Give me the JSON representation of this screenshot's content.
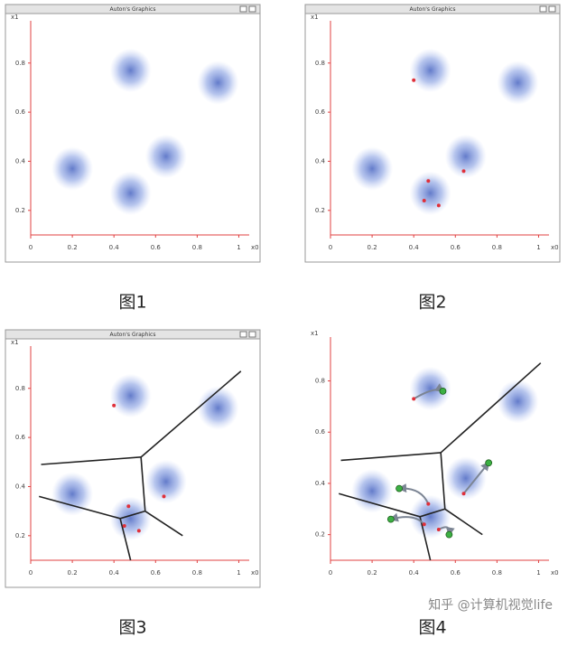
{
  "chart_data": [
    {
      "type": "scatter",
      "title": "Auton's Graphics",
      "caption": "图1",
      "xlabel": "x0",
      "ylabel": "x1",
      "xlim": [
        0,
        1.05
      ],
      "ylim": [
        0.1,
        0.95
      ],
      "xticks": [
        0,
        0.2,
        0.4,
        0.6,
        0.8,
        1
      ],
      "yticks": [
        0.2,
        0.4,
        0.6,
        0.8
      ],
      "clusters": {
        "color": "#4f6fd0",
        "x": [
          0.48,
          0.9,
          0.2,
          0.65,
          0.48
        ],
        "y": [
          0.77,
          0.72,
          0.37,
          0.42,
          0.27
        ]
      }
    },
    {
      "type": "scatter",
      "title": "Auton's Graphics",
      "caption": "图2",
      "xlabel": "x0",
      "ylabel": "x1",
      "xlim": [
        0,
        1.05
      ],
      "ylim": [
        0.1,
        0.95
      ],
      "xticks": [
        0,
        0.2,
        0.4,
        0.6,
        0.8,
        1
      ],
      "yticks": [
        0.2,
        0.4,
        0.6,
        0.8
      ],
      "clusters": {
        "color": "#4f6fd0",
        "x": [
          0.48,
          0.9,
          0.2,
          0.65,
          0.48
        ],
        "y": [
          0.77,
          0.72,
          0.37,
          0.42,
          0.27
        ]
      },
      "centers": {
        "color": "#e0303a",
        "x": [
          0.4,
          0.47,
          0.45,
          0.52,
          0.64
        ],
        "y": [
          0.73,
          0.32,
          0.24,
          0.22,
          0.36
        ]
      }
    },
    {
      "type": "scatter",
      "title": "Auton's Graphics",
      "caption": "图3",
      "xlabel": "x0",
      "ylabel": "x1",
      "xlim": [
        0,
        1.05
      ],
      "ylim": [
        0.1,
        0.95
      ],
      "xticks": [
        0,
        0.2,
        0.4,
        0.6,
        0.8,
        1
      ],
      "yticks": [
        0.2,
        0.4,
        0.6,
        0.8
      ],
      "clusters": {
        "color": "#4f6fd0",
        "x": [
          0.48,
          0.9,
          0.2,
          0.65,
          0.48
        ],
        "y": [
          0.77,
          0.72,
          0.37,
          0.42,
          0.27
        ]
      },
      "centers": {
        "color": "#e0303a",
        "x": [
          0.4,
          0.47,
          0.45,
          0.52,
          0.64
        ],
        "y": [
          0.73,
          0.32,
          0.24,
          0.22,
          0.36
        ]
      },
      "boundaries": [
        {
          "x": [
            0.05,
            0.53
          ],
          "y": [
            0.49,
            0.52
          ]
        },
        {
          "x": [
            0.53,
            1.01
          ],
          "y": [
            0.52,
            0.87
          ]
        },
        {
          "x": [
            0.53,
            0.55
          ],
          "y": [
            0.52,
            0.3
          ]
        },
        {
          "x": [
            0.04,
            0.43
          ],
          "y": [
            0.36,
            0.27
          ]
        },
        {
          "x": [
            0.43,
            0.55
          ],
          "y": [
            0.27,
            0.3
          ]
        },
        {
          "x": [
            0.43,
            0.48
          ],
          "y": [
            0.27,
            0.1
          ]
        },
        {
          "x": [
            0.55,
            0.73
          ],
          "y": [
            0.3,
            0.2
          ]
        }
      ]
    },
    {
      "type": "scatter",
      "caption": "图4",
      "xlabel": "x0",
      "ylabel": "x1",
      "watermark": "知乎 @计算机视觉life",
      "xlim": [
        0,
        1.05
      ],
      "ylim": [
        0.1,
        0.95
      ],
      "xticks": [
        0,
        0.2,
        0.4,
        0.6,
        0.8,
        1
      ],
      "yticks": [
        0.2,
        0.4,
        0.6,
        0.8
      ],
      "clusters": {
        "color": "#4f6fd0",
        "x": [
          0.48,
          0.9,
          0.2,
          0.65,
          0.48
        ],
        "y": [
          0.77,
          0.72,
          0.37,
          0.42,
          0.27
        ]
      },
      "centers": {
        "color": "#e0303a",
        "x": [
          0.4,
          0.47,
          0.45,
          0.52,
          0.64
        ],
        "y": [
          0.73,
          0.32,
          0.24,
          0.22,
          0.36
        ]
      },
      "new_centers": {
        "color": "#3cb043",
        "x": [
          0.54,
          0.33,
          0.29,
          0.57,
          0.76
        ],
        "y": [
          0.76,
          0.38,
          0.26,
          0.2,
          0.48
        ]
      },
      "boundaries": [
        {
          "x": [
            0.05,
            0.53
          ],
          "y": [
            0.49,
            0.52
          ]
        },
        {
          "x": [
            0.53,
            1.01
          ],
          "y": [
            0.52,
            0.87
          ]
        },
        {
          "x": [
            0.53,
            0.55
          ],
          "y": [
            0.52,
            0.3
          ]
        },
        {
          "x": [
            0.04,
            0.43
          ],
          "y": [
            0.36,
            0.27
          ]
        },
        {
          "x": [
            0.43,
            0.55
          ],
          "y": [
            0.27,
            0.3
          ]
        },
        {
          "x": [
            0.43,
            0.48
          ],
          "y": [
            0.27,
            0.1
          ]
        },
        {
          "x": [
            0.55,
            0.73
          ],
          "y": [
            0.3,
            0.2
          ]
        }
      ]
    }
  ]
}
